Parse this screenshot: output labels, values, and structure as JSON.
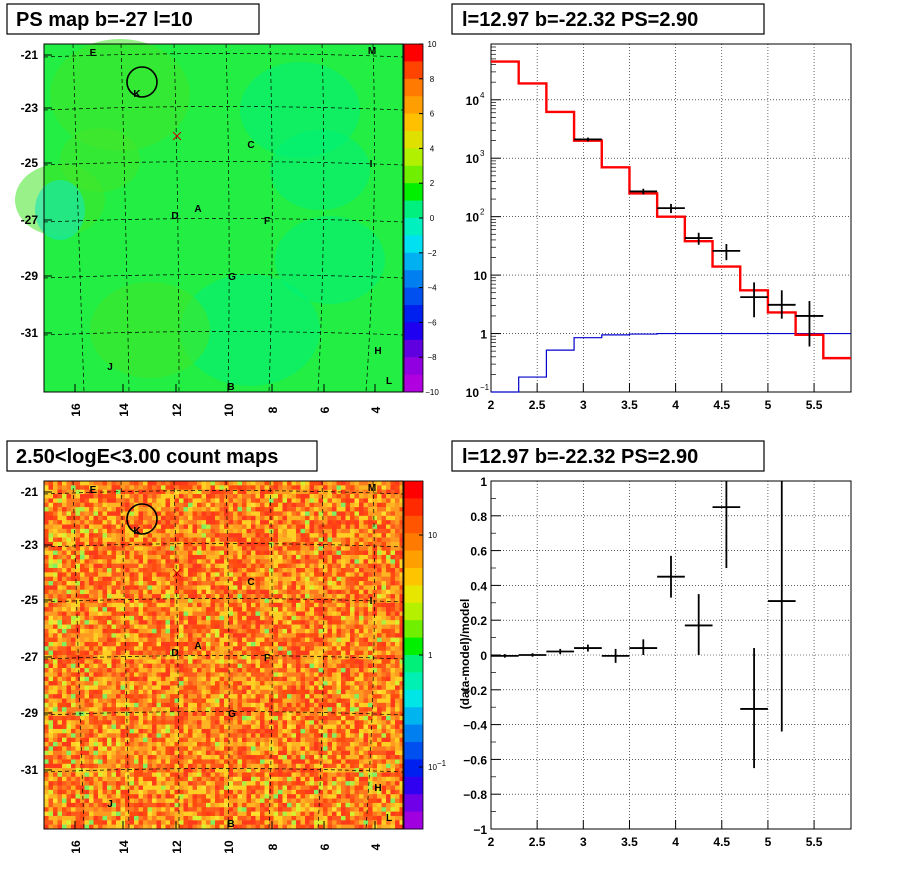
{
  "panels": {
    "ps_map": {
      "title": "PS map b=-27 l=10"
    },
    "spectrum": {
      "title": "l=12.97 b=-22.32 PS=2.90"
    },
    "count_map": {
      "title": "2.50<logE<3.00 count maps"
    },
    "residual": {
      "title": "l=12.97 b=-22.32 PS=2.90"
    }
  },
  "map_axes": {
    "y_ticks": [
      "-21",
      "-23",
      "-25",
      "-27",
      "-29",
      "-31"
    ],
    "x_ticks": [
      "16",
      "14",
      "12",
      "10",
      "8",
      "6",
      "4"
    ],
    "source_labels": [
      "E",
      "M",
      "K",
      "C",
      "I",
      "D",
      "A",
      "F",
      "G",
      "H",
      "J",
      "B",
      "L"
    ]
  },
  "colorbars": {
    "ps": {
      "labels": [
        "10",
        "8",
        "6",
        "4",
        "2",
        "0",
        "−2",
        "−4",
        "−6",
        "−8",
        "−10"
      ],
      "range": [
        -10,
        10
      ]
    },
    "count": {
      "labels": [
        "10",
        "1",
        "10",
        "−1"
      ],
      "scale": "log"
    }
  },
  "colors": {
    "data": "#000000",
    "model": "#ff0000",
    "component": "#0000cc"
  },
  "chart_data": [
    {
      "type": "heatmap",
      "title": "PS map b=-27 l=10",
      "x_ticks": [
        16,
        14,
        12,
        10,
        8,
        6,
        4
      ],
      "y_ticks": [
        -21,
        -23,
        -25,
        -27,
        -29,
        -31
      ],
      "zlim": [
        -10,
        10
      ],
      "grid": true
    },
    {
      "type": "line",
      "title": "l=12.97 b=-22.32 PS=2.90",
      "xlabel": "",
      "ylabel": "",
      "xlim": [
        2.0,
        5.9
      ],
      "ylim": [
        0.1,
        90000
      ],
      "yscale": "log",
      "x_ticks": [
        "2",
        "2.5",
        "3",
        "3.5",
        "4",
        "4.5",
        "5",
        "5.5"
      ],
      "y_ticks": [
        {
          "v": 0.1,
          "base": "10",
          "exp": "−1"
        },
        {
          "v": 1,
          "base": "1",
          "exp": ""
        },
        {
          "v": 10,
          "base": "10",
          "exp": ""
        },
        {
          "v": 100,
          "base": "10",
          "exp": "2"
        },
        {
          "v": 1000,
          "base": "10",
          "exp": "3"
        },
        {
          "v": 10000,
          "base": "10",
          "exp": "4"
        }
      ],
      "grid": true,
      "series": [
        {
          "kind": "step",
          "edges": [
            2.0,
            2.3,
            2.6,
            2.9,
            3.2,
            3.5,
            3.8,
            4.1,
            4.4,
            4.7,
            5.0,
            5.3,
            5.6,
            5.9
          ],
          "values": [
            45000,
            19000,
            6200,
            2000,
            700,
            250,
            100,
            38,
            14,
            5.5,
            2.3,
            0.95,
            0.38
          ]
        },
        {
          "kind": "step",
          "edges": [
            2.0,
            2.3,
            2.6,
            2.9,
            3.2,
            3.5,
            3.8,
            4.1,
            4.4,
            4.7,
            5.0,
            5.3,
            5.6,
            5.9
          ],
          "values": [
            0.1,
            0.18,
            0.52,
            0.85,
            0.95,
            0.98,
            1,
            1,
            1,
            1,
            1,
            1,
            1
          ]
        },
        {
          "kind": "errorbar",
          "x": [
            3.05,
            3.65,
            3.95,
            4.25,
            4.55,
            4.85,
            5.15,
            5.45
          ],
          "xerr": 0.15,
          "y": [
            2100,
            270,
            140,
            43,
            26,
            4.2,
            3.1,
            2.0
          ],
          "ylo": [
            1950,
            240,
            115,
            33,
            18,
            1.9,
            1.8,
            0.6
          ],
          "yhi": [
            2250,
            300,
            165,
            53,
            34,
            7.5,
            5.5,
            3.6
          ]
        }
      ]
    },
    {
      "type": "heatmap",
      "title": "2.50<logE<3.00 count maps",
      "x_ticks": [
        16,
        14,
        12,
        10,
        8,
        6,
        4
      ],
      "y_ticks": [
        -21,
        -23,
        -25,
        -27,
        -29,
        -31
      ],
      "zscale": "log",
      "grid": true
    },
    {
      "type": "scatter",
      "title": "l=12.97 b=-22.32 PS=2.90",
      "xlabel": "",
      "ylabel": "(data-model)/model",
      "xlim": [
        2.0,
        5.9
      ],
      "ylim": [
        -1,
        1
      ],
      "x_ticks": [
        "2",
        "2.5",
        "3",
        "3.5",
        "4",
        "4.5",
        "5",
        "5.5"
      ],
      "y_ticks": [
        "1",
        "0.8",
        "0.6",
        "0.4",
        "0.2",
        "0",
        "−0.2",
        "−0.4",
        "−0.6",
        "−0.8",
        "−1"
      ],
      "grid": true,
      "x": [
        2.15,
        2.45,
        2.75,
        3.05,
        3.35,
        3.65,
        3.95,
        4.25,
        4.55,
        4.85,
        5.15
      ],
      "xerr": 0.15,
      "y": [
        -0.005,
        0.0,
        0.02,
        0.04,
        -0.005,
        0.04,
        0.45,
        0.17,
        0.85,
        -0.31,
        0.31
      ],
      "ylo": [
        -0.015,
        -0.01,
        0.005,
        0.02,
        -0.045,
        0.0,
        0.33,
        0.0,
        0.5,
        -0.65,
        -0.44
      ],
      "yhi": [
        0.005,
        0.01,
        0.035,
        0.06,
        0.035,
        0.09,
        0.57,
        0.35,
        1.0,
        0.04,
        1.0
      ]
    }
  ]
}
